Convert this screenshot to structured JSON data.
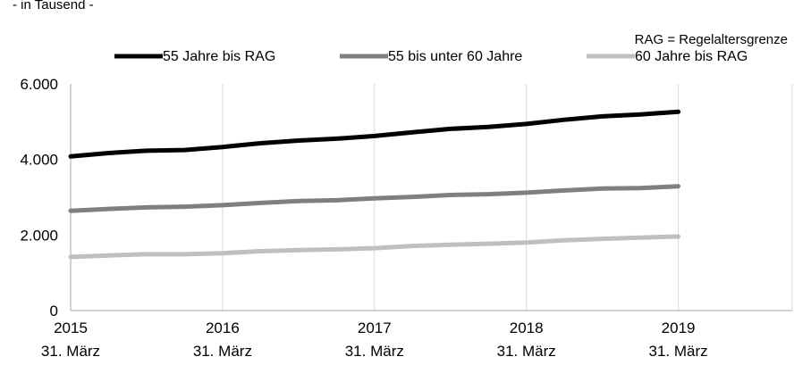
{
  "chart_data": {
    "type": "line",
    "subtitle": "- in Tausend -",
    "note": "RAG = Regelaltersgrenze",
    "x": [
      2015,
      2015.25,
      2015.5,
      2015.75,
      2016,
      2016.25,
      2016.5,
      2016.75,
      2017,
      2017.25,
      2017.5,
      2017.75,
      2018,
      2018.25,
      2018.5,
      2018.75,
      2019
    ],
    "xticks": [
      {
        "value": 2015,
        "label": "2015",
        "sublabel": "31. März"
      },
      {
        "value": 2016,
        "label": "2016",
        "sublabel": "31. März"
      },
      {
        "value": 2017,
        "label": "2017",
        "sublabel": "31. März"
      },
      {
        "value": 2018,
        "label": "2018",
        "sublabel": "31. März"
      },
      {
        "value": 2019,
        "label": "2019",
        "sublabel": "31. März"
      }
    ],
    "xlim": [
      2015,
      2019.75
    ],
    "ylim": [
      0,
      6000
    ],
    "yticks": [
      0,
      2000,
      4000,
      6000
    ],
    "ytick_labels": [
      "0",
      "2.000",
      "4.000",
      "6.000"
    ],
    "grid": "vertical at year ticks",
    "legend_position": "top",
    "series": [
      {
        "name": "55 Jahre bis RAG",
        "color": "#000000",
        "values": [
          4080,
          4170,
          4230,
          4250,
          4330,
          4430,
          4500,
          4550,
          4620,
          4720,
          4810,
          4860,
          4940,
          5050,
          5140,
          5190,
          5260
        ]
      },
      {
        "name": "55 bis unter 60 Jahre",
        "color": "#7f7f7f",
        "values": [
          2640,
          2690,
          2730,
          2750,
          2790,
          2850,
          2900,
          2920,
          2970,
          3010,
          3060,
          3080,
          3120,
          3180,
          3230,
          3240,
          3290
        ]
      },
      {
        "name": "60 Jahre bis RAG",
        "color": "#bfbfbf",
        "values": [
          1420,
          1460,
          1490,
          1490,
          1520,
          1570,
          1600,
          1620,
          1650,
          1710,
          1740,
          1770,
          1800,
          1860,
          1900,
          1930,
          1960
        ]
      }
    ]
  }
}
